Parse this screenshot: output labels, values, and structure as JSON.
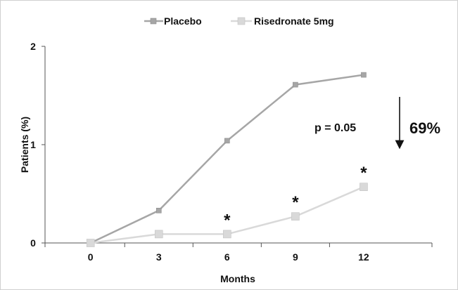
{
  "chart_data": {
    "type": "line",
    "title": "",
    "xlabel": "Months",
    "ylabel": "Patients (%)",
    "x": [
      0,
      3,
      6,
      9,
      12
    ],
    "x_tick_labels": [
      "0",
      "3",
      "6",
      "9",
      "12"
    ],
    "xlim": [
      -2,
      15
    ],
    "ylim": [
      0,
      2
    ],
    "y_ticks": [
      0,
      1,
      2
    ],
    "y_tick_labels": [
      "0",
      "1",
      "2"
    ],
    "grid": false,
    "legend_position": "top-center",
    "series": [
      {
        "name": "Placebo",
        "values": [
          0,
          0.33,
          1.04,
          1.61,
          1.71
        ],
        "color": "#a6a6a6",
        "marker": "square"
      },
      {
        "name": "Risedronate 5mg",
        "values": [
          0,
          0.09,
          0.09,
          0.27,
          0.57
        ],
        "color": "#d9d9d9",
        "marker": "square"
      }
    ],
    "annotations": {
      "p_value": "p = 0.05",
      "reduction": "69%",
      "significance_marker": "*",
      "significance_at_x": [
        6,
        9,
        12
      ]
    }
  }
}
